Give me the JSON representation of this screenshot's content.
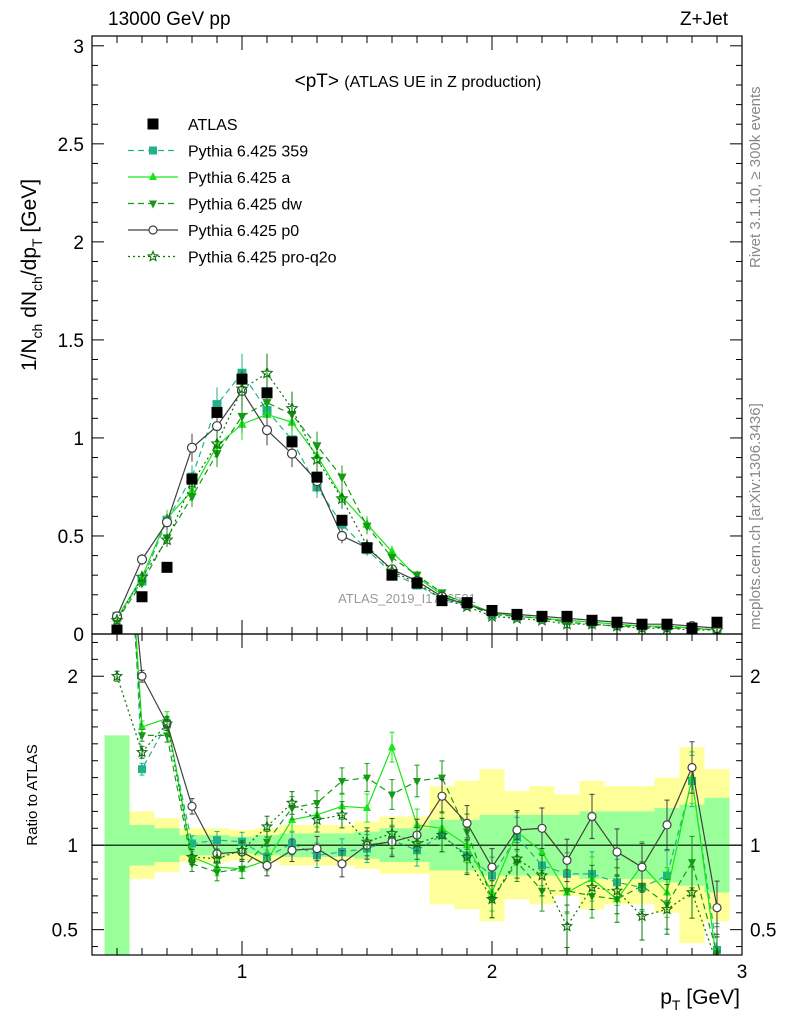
{
  "header": {
    "left": "13000 GeV pp",
    "right": "Z+Jet"
  },
  "side_labels": {
    "rivet": "Rivet 3.1.10, ≥ 300k events",
    "mcplots": "mcplots.cern.ch [arXiv:1306.3436]"
  },
  "watermark": "ATLAS_2019_I1736531",
  "chart_data": {
    "type": "line",
    "title": "<pT>",
    "subtitle": "(ATLAS UE in Z production)",
    "xlabel": "p_T [GeV]",
    "ylabel": "1/N_ch dN_ch/dp_T [GeV]",
    "ratio_ylabel": "Ratio to ATLAS",
    "xlim": [
      0.4,
      3.0
    ],
    "ylim": [
      0,
      3.05
    ],
    "ratio_ylim": [
      0.35,
      2.25
    ],
    "x_ticks": [
      1,
      2,
      3
    ],
    "y_ticks": [
      "0",
      "0.5",
      "1",
      "1.5",
      "2",
      "2.5",
      "3"
    ],
    "ratio_ticks": [
      "0.5",
      "1",
      "2"
    ],
    "x": [
      0.5,
      0.6,
      0.7,
      0.8,
      0.9,
      1.0,
      1.1,
      1.2,
      1.3,
      1.4,
      1.5,
      1.6,
      1.7,
      1.8,
      1.9,
      2.0,
      2.1,
      2.2,
      2.3,
      2.4,
      2.5,
      2.6,
      2.7,
      2.8,
      2.9
    ],
    "data": {
      "name": "ATLAS",
      "values": [
        0.02,
        0.19,
        0.34,
        0.79,
        1.13,
        1.3,
        1.23,
        0.98,
        0.8,
        0.58,
        0.44,
        0.3,
        0.26,
        0.17,
        0.16,
        0.12,
        0.1,
        0.09,
        0.09,
        0.07,
        0.06,
        0.05,
        0.05,
        0.03,
        0.06
      ]
    },
    "series": [
      {
        "name": "Pythia 6.425 359",
        "color": "#20b38a",
        "dash": "6,4",
        "marker": "square",
        "values": [
          0.09,
          0.27,
          0.58,
          0.8,
          1.17,
          1.33,
          1.14,
          0.99,
          0.75,
          0.56,
          0.43,
          0.31,
          0.25,
          0.18,
          0.15,
          0.1,
          0.09,
          0.08,
          0.07,
          0.06,
          0.05,
          0.04,
          0.04,
          0.03,
          0.02
        ],
        "ratio": [
          4.5,
          1.45,
          1.72,
          1.01,
          1.03,
          1.02,
          0.93,
          1.01,
          0.94,
          0.96,
          0.98,
          1.03,
          0.97,
          1.06,
          0.94,
          0.82,
          1.05,
          0.88,
          0.83,
          0.83,
          0.78,
          0.75,
          0.82,
          1.38,
          0.38
        ]
      },
      {
        "name": "Pythia 6.425 a",
        "color": "#19e619",
        "dash": "",
        "marker": "triangle",
        "values": [
          0.08,
          0.29,
          0.59,
          0.73,
          0.96,
          1.07,
          1.12,
          1.08,
          0.91,
          0.7,
          0.56,
          0.42,
          0.29,
          0.2,
          0.16,
          0.11,
          0.09,
          0.08,
          0.07,
          0.06,
          0.05,
          0.04,
          0.04,
          0.03,
          0.02
        ],
        "ratio": [
          4.0,
          1.7,
          1.75,
          0.93,
          0.87,
          0.86,
          0.91,
          1.15,
          1.18,
          1.23,
          1.22,
          1.58,
          1.12,
          1.1,
          1.0,
          0.72,
          1.08,
          0.96,
          0.72,
          0.8,
          0.68,
          0.88,
          0.72,
          1.4,
          0.3
        ]
      },
      {
        "name": "Pythia 6.425 dw",
        "color": "#149b14",
        "dash": "6,4",
        "marker": "triangle-down",
        "values": [
          0.07,
          0.26,
          0.49,
          0.7,
          0.92,
          1.11,
          1.18,
          1.12,
          0.96,
          0.8,
          0.55,
          0.39,
          0.3,
          0.21,
          0.15,
          0.1,
          0.09,
          0.08,
          0.06,
          0.05,
          0.04,
          0.04,
          0.03,
          0.03,
          0.02
        ],
        "ratio": [
          3.8,
          1.65,
          1.65,
          0.89,
          0.84,
          0.86,
          1.02,
          1.22,
          1.25,
          1.38,
          1.4,
          1.3,
          1.38,
          1.4,
          1.08,
          0.68,
          0.9,
          0.73,
          0.73,
          0.7,
          0.68,
          0.76,
          0.65,
          0.9,
          0.36
        ]
      },
      {
        "name": "Pythia 6.425 p0",
        "color": "#404040",
        "dash": "",
        "marker": "circle-open",
        "values": [
          0.09,
          0.38,
          0.57,
          0.95,
          1.06,
          1.24,
          1.04,
          0.92,
          0.78,
          0.5,
          0.44,
          0.33,
          0.27,
          0.19,
          0.15,
          0.11,
          0.1,
          0.09,
          0.08,
          0.07,
          0.06,
          0.05,
          0.05,
          0.04,
          0.03
        ],
        "ratio": [
          3.5,
          2.0,
          1.72,
          1.23,
          0.95,
          0.96,
          0.88,
          0.97,
          0.98,
          0.89,
          1.0,
          1.02,
          1.06,
          1.29,
          1.13,
          0.87,
          1.09,
          1.1,
          0.91,
          1.17,
          0.96,
          0.87,
          1.12,
          1.46,
          0.63
        ]
      },
      {
        "name": "Pythia 6.425 pro-q2o",
        "color": "#0f730f",
        "dash": "2,3",
        "marker": "star",
        "values": [
          0.07,
          0.29,
          0.48,
          0.77,
          0.97,
          1.25,
          1.33,
          1.15,
          0.89,
          0.69,
          0.45,
          0.32,
          0.26,
          0.18,
          0.14,
          0.09,
          0.08,
          0.07,
          0.05,
          0.05,
          0.04,
          0.03,
          0.03,
          0.02,
          0.02
        ],
        "ratio": [
          2.0,
          1.55,
          1.72,
          0.93,
          0.92,
          0.97,
          1.11,
          1.25,
          1.15,
          1.18,
          1.02,
          1.07,
          1.01,
          1.06,
          0.93,
          0.68,
          0.92,
          0.82,
          0.52,
          0.75,
          0.73,
          0.58,
          0.62,
          0.72,
          0.3
        ]
      }
    ],
    "band_inner": [
      0.65,
      0.12,
      0.1,
      0.06,
      0.06,
      0.05,
      0.06,
      0.07,
      0.07,
      0.07,
      0.08,
      0.1,
      0.1,
      0.15,
      0.15,
      0.18,
      0.18,
      0.18,
      0.18,
      0.2,
      0.2,
      0.2,
      0.22,
      0.24,
      0.28
    ],
    "band_outer": [
      0.65,
      0.2,
      0.16,
      0.1,
      0.1,
      0.09,
      0.1,
      0.12,
      0.12,
      0.12,
      0.14,
      0.17,
      0.17,
      0.35,
      0.38,
      0.45,
      0.32,
      0.35,
      0.3,
      0.38,
      0.35,
      0.35,
      0.4,
      0.58,
      0.45
    ],
    "band_colors": {
      "inner": "#99ff99",
      "outer": "#ffff99"
    }
  }
}
